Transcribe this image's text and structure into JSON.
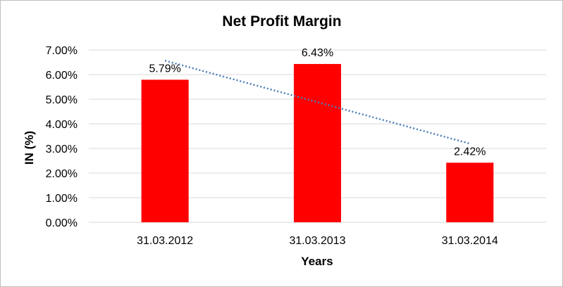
{
  "chart_data": {
    "type": "bar",
    "title": "Net Profit Margin",
    "xlabel": "Years",
    "ylabel": "IN (%)",
    "categories": [
      "31.03.2012",
      "31.03.2013",
      "31.03.2014"
    ],
    "series": [
      {
        "values": [
          5.79,
          6.43,
          2.42
        ],
        "data_labels": [
          "5.79%",
          "6.43%",
          "2.42%"
        ],
        "color": "#ff0000"
      }
    ],
    "trendline": {
      "type": "linear",
      "style": "dotted",
      "color": "#4a7eb8"
    },
    "ylim": [
      0,
      7
    ],
    "y_ticks": [
      0,
      1,
      2,
      3,
      4,
      5,
      6,
      7
    ],
    "y_tick_labels": [
      "0.00%",
      "1.00%",
      "2.00%",
      "3.00%",
      "4.00%",
      "5.00%",
      "6.00%",
      "7.00%"
    ],
    "grid": true,
    "legend": "none"
  }
}
